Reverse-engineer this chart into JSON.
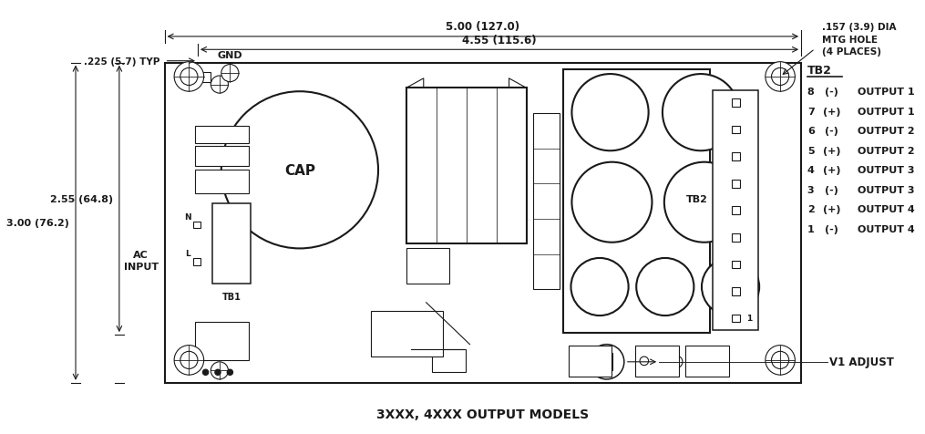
{
  "fig_width": 10.15,
  "fig_height": 4.77,
  "bg_color": "#ffffff",
  "line_color": "#1a1a1a",
  "title": "3XXX, 4XXX OUTPUT MODELS",
  "dim_5_00": "5.00 (127.0)",
  "dim_4_55": "4.55 (115.6)",
  "dim_225": ".225 (5.7) TYP",
  "dim_255": "2.55 (64.8)",
  "dim_300": "3.00 (76.2)",
  "dim_mtg_line1": ".157 (3.9) DIA",
  "dim_mtg_line2": "MTG HOLE",
  "dim_mtg_line3": "(4 PLACES)",
  "label_gnd": "GND",
  "label_ac": "AC\nINPUT",
  "label_cap": "CAP",
  "label_tb1": "TB1",
  "label_tb2": "TB2",
  "label_v1": "V1 ADJUST",
  "tb2_nums": [
    "8",
    "7",
    "6",
    "5",
    "4",
    "3",
    "2",
    "1"
  ],
  "tb2_signs": [
    "(-)",
    "(+)",
    "(-)",
    "(+)",
    "(+)",
    "(-)",
    "(+)",
    "(-)"
  ],
  "tb2_labels": [
    "OUTPUT 1",
    "OUTPUT 1",
    "OUTPUT 2",
    "OUTPUT 2",
    "OUTPUT 3",
    "OUTPUT 3",
    "OUTPUT 4",
    "OUTPUT 4"
  ]
}
